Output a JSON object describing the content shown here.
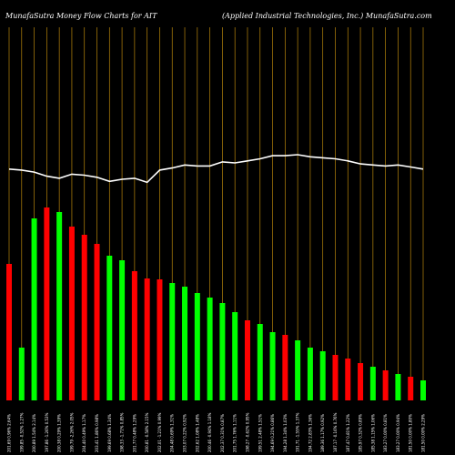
{
  "chart_data": {
    "type": "bar",
    "title_left": "MunafaSutra  Money Flow  Charts for AIT",
    "title_right": "(Applied Industrial Technologies, Inc.) MunafaSutra.com",
    "colors": {
      "up": "#00ff00",
      "down": "#ff0000",
      "line": "#ffffff",
      "grid": "#b8860b",
      "background": "#000000"
    },
    "y_bar_max": 300,
    "line_range": [
      160,
      240
    ],
    "x": [
      "201.69 0.96% 2.64%",
      "199.85 -0.52% 1.27%",
      "200.89 1.54% 2.14%",
      "197.86 -1.26% 0.53%",
      "200.38 0.29% 1.39%",
      "199.79 -2.26% 2.05%",
      "204.40 0.49% 1.17%",
      "203.41 1.86% 0.98%",
      "199.69 0.68% 1.34%",
      "198.33 -1.71% 0.85%",
      "201.77 0.48% 1.29%",
      "200.81 -0.58% 2.15%",
      "202.01 -1.21% 0.99%",
      "204.48 0.69% 1.31%",
      "203.07 0.22% 0.92%",
      "202.62 1.08% 1.48%",
      "200.46 -0.94% 1.18%",
      "202.37 0.31% 0.87%",
      "201.75 1.76% 1.11%",
      "198.27 -0.62% 0.95%",
      "199.51 2.48% 1.51%",
      "194.69 0.21% 0.86%",
      "194.28 1.34% 1.03%",
      "191.71 -1.55% 1.37%",
      "194.72 2.83% 1.36%",
      "189.36 1.17% 0.92%",
      "187.17 -0.16% 0.76%",
      "187.47 0.81% 1.22%",
      "185.97 0.32% 0.89%",
      "185.38 1.15% 1.06%",
      "183.27 0.00% 0.81%",
      "183.27 0.00% 0.94%",
      "181.50 0.00% 1.80%",
      "181.50 0.00% 2.29%"
    ],
    "series": [
      {
        "values": [
          150,
          58,
          200,
          212,
          207,
          191,
          182,
          172,
          159,
          154,
          142,
          134,
          133,
          129,
          125,
          118,
          113,
          107,
          97,
          88,
          84,
          75,
          72,
          66,
          58,
          54,
          50,
          46,
          41,
          37,
          33,
          29,
          26,
          22
        ],
        "colors": [
          "r",
          "g",
          "g",
          "r",
          "g",
          "r",
          "r",
          "r",
          "g",
          "g",
          "r",
          "r",
          "r",
          "g",
          "g",
          "g",
          "g",
          "g",
          "g",
          "r",
          "g",
          "g",
          "r",
          "g",
          "g",
          "g",
          "r",
          "r",
          "r",
          "g",
          "r",
          "g",
          "r",
          "g"
        ]
      },
      {
        "values": [
          226,
          225,
          223,
          219,
          217,
          221,
          220,
          218,
          214,
          216,
          217,
          213,
          225,
          227,
          230,
          229,
          229,
          233,
          232,
          234,
          236,
          239,
          239,
          240,
          238,
          237,
          236,
          234,
          231,
          230,
          229,
          230,
          228,
          226
        ]
      }
    ]
  }
}
